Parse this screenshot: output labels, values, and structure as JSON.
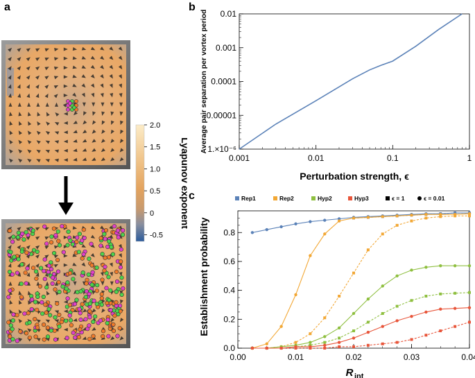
{
  "panel_labels": {
    "a": "a",
    "b": "b",
    "c": "c"
  },
  "colorbar": {
    "title": "Lyapunov exponent",
    "ticks": [
      "2.0",
      "1.5",
      "1.0",
      "0.5",
      "0",
      "-0.5"
    ],
    "tick_values": [
      2.0,
      1.5,
      1.0,
      0.5,
      0,
      -0.5
    ],
    "range": [
      -0.65,
      2.0
    ],
    "colors": {
      "high": "#fbe8c0",
      "mid": "#e5a35c",
      "low": "#2d5f9e"
    }
  },
  "panel_a": {
    "top_image": "vortex-flow-field-initial-particles",
    "bottom_image": "vortex-flow-field-dispersed-particles",
    "arrow": "down-arrow-icon",
    "particle_colors": {
      "magenta": "#e040c8",
      "green": "#4cd44c",
      "orange": "#f07a2a"
    }
  },
  "chart_data": [
    {
      "id": "b",
      "type": "line",
      "xscale": "log",
      "yscale": "log",
      "xlabel": "Perturbation strength, ϵ",
      "ylabel": "Average pair separation per vortex period",
      "xlim": [
        0.001,
        1
      ],
      "ylim": [
        1e-06,
        0.01
      ],
      "xticks": [
        0.001,
        0.01,
        0.1,
        1
      ],
      "xtick_labels": [
        "0.001",
        "0.01",
        "0.1",
        "1"
      ],
      "yticks": [
        1e-06,
        1e-05,
        0.0001,
        0.001,
        0.01
      ],
      "ytick_labels": [
        "1.×10⁻⁶",
        "0.00001",
        "0.0001",
        "0.001",
        "0.01"
      ],
      "color": "#5b82b8",
      "series": [
        {
          "name": "separation",
          "x": [
            0.001,
            0.003,
            0.01,
            0.03,
            0.05,
            0.07,
            0.1,
            0.2,
            0.4,
            0.8
          ],
          "y": [
            1e-06,
            5.5e-06,
            2.7e-05,
            0.00012,
            0.00022,
            0.0003,
            0.0004,
            0.0011,
            0.0035,
            0.01
          ]
        }
      ]
    },
    {
      "id": "c",
      "type": "line",
      "xlabel": "R",
      "xlabel_sub": "int",
      "ylabel": "Establishment probability",
      "xlim": [
        0,
        0.04
      ],
      "ylim": [
        0,
        0.95
      ],
      "xticks": [
        0,
        0.01,
        0.02,
        0.03,
        0.04
      ],
      "xtick_labels": [
        "0.00",
        "0.01",
        "0.02",
        "0.03",
        "0.04"
      ],
      "yticks": [
        0,
        0.2,
        0.4,
        0.6,
        0.8
      ],
      "ytick_labels": [
        "0.0",
        "0.2",
        "0.4",
        "0.6",
        "0.8"
      ],
      "legend": [
        {
          "label": "Rep1",
          "color": "#5b82b8",
          "marker": "square"
        },
        {
          "label": "Rep2",
          "color": "#f2a734",
          "marker": "square"
        },
        {
          "label": "Hyp2",
          "color": "#8ebf3f",
          "marker": "square"
        },
        {
          "label": "Hyp3",
          "color": "#e8553a",
          "marker": "square"
        },
        {
          "label": "ϵ = 1",
          "color": "#000000",
          "marker": "square"
        },
        {
          "label": "ϵ = 0.01",
          "color": "#000000",
          "marker": "circle"
        }
      ],
      "legend_position": "top",
      "x": [
        0.0025,
        0.005,
        0.0075,
        0.01,
        0.0125,
        0.015,
        0.0175,
        0.02,
        0.0225,
        0.025,
        0.0275,
        0.03,
        0.0325,
        0.035,
        0.0375,
        0.04
      ],
      "series": [
        {
          "name": "Rep1 ϵ=0.01",
          "color": "#5b82b8",
          "dash": false,
          "marker": "circle",
          "values": [
            0.8,
            0.82,
            0.84,
            0.86,
            0.875,
            0.885,
            0.895,
            0.905,
            0.91,
            0.915,
            0.92,
            0.925,
            0.93,
            0.93,
            0.935,
            0.935
          ]
        },
        {
          "name": "Rep1 ϵ=1",
          "color": "#5b82b8",
          "dash": true,
          "marker": "square",
          "values": [
            null,
            null,
            null,
            null,
            null,
            null,
            null,
            0.9,
            0.905,
            0.91,
            0.915,
            0.92,
            0.925,
            0.93,
            0.935,
            0.935
          ]
        },
        {
          "name": "Rep2 ϵ=0.01",
          "color": "#f2a734",
          "dash": false,
          "marker": "circle",
          "values": [
            0.0,
            0.03,
            0.15,
            0.37,
            0.64,
            0.79,
            0.88,
            0.9,
            0.905,
            0.91,
            0.915,
            0.92,
            0.925,
            0.925,
            0.925,
            0.93
          ]
        },
        {
          "name": "Rep2 ϵ=1",
          "color": "#f2a734",
          "dash": true,
          "marker": "square",
          "values": [
            0.0,
            0.0,
            0.01,
            0.04,
            0.1,
            0.21,
            0.36,
            0.52,
            0.68,
            0.79,
            0.85,
            0.88,
            0.9,
            0.91,
            0.915,
            0.915
          ]
        },
        {
          "name": "Hyp2 ϵ=0.01",
          "color": "#8ebf3f",
          "dash": false,
          "marker": "circle",
          "values": [
            0.0,
            0.0,
            0.01,
            0.02,
            0.04,
            0.08,
            0.14,
            0.24,
            0.34,
            0.43,
            0.5,
            0.54,
            0.56,
            0.57,
            0.57,
            0.57
          ]
        },
        {
          "name": "Hyp2 ϵ=1",
          "color": "#8ebf3f",
          "dash": true,
          "marker": "square",
          "values": [
            0.0,
            0.0,
            0.0,
            0.01,
            0.02,
            0.04,
            0.07,
            0.12,
            0.18,
            0.24,
            0.29,
            0.33,
            0.36,
            0.375,
            0.38,
            0.385
          ]
        },
        {
          "name": "Hyp3 ϵ=0.01",
          "color": "#e8553a",
          "dash": false,
          "marker": "circle",
          "values": [
            0.0,
            0.0,
            0.0,
            0.01,
            0.01,
            0.02,
            0.04,
            0.07,
            0.11,
            0.15,
            0.19,
            0.22,
            0.25,
            0.27,
            0.275,
            0.28
          ]
        },
        {
          "name": "Hyp3 ϵ=1",
          "color": "#e8553a",
          "dash": true,
          "marker": "square",
          "values": [
            0.0,
            0.0,
            0.0,
            0.0,
            0.0,
            0.0,
            0.01,
            0.01,
            0.02,
            0.03,
            0.04,
            0.06,
            0.09,
            0.12,
            0.15,
            0.18
          ]
        }
      ]
    }
  ]
}
